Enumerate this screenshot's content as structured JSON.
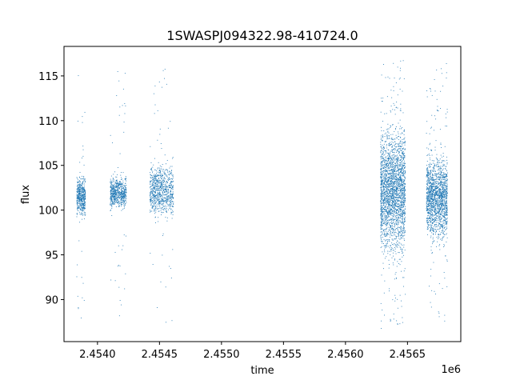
{
  "chart_data": {
    "type": "scatter",
    "title": "1SWASPJ094322.98-410724.0",
    "xlabel": "time",
    "ylabel": "flux",
    "x_offset_label": "1e6",
    "xlim": [
      2453730.0,
      2456930.0
    ],
    "ylim": [
      85.3,
      118.3
    ],
    "x_ticks": [
      2454000.0,
      2454500.0,
      2455000.0,
      2455500.0,
      2456000.0,
      2456500.0
    ],
    "x_tick_labels": [
      "2.4540",
      "2.4545",
      "2.4550",
      "2.4555",
      "2.4560",
      "2.4565"
    ],
    "y_ticks": [
      90,
      95,
      100,
      105,
      110,
      115
    ],
    "y_tick_labels": [
      "90",
      "95",
      "100",
      "105",
      "110",
      "115"
    ],
    "grid": false,
    "point_color": "#1f77b4",
    "series": [
      {
        "clusters": [
          {
            "x_range": [
              2453830.0,
              2453900.0
            ],
            "core_y_range": [
              98.5,
              104.5
            ],
            "outlier_y_range": [
              87.3,
              117.0
            ],
            "n": 500
          },
          {
            "x_range": [
              2454100.0,
              2454230.0
            ],
            "core_y_range": [
              99.5,
              104.5
            ],
            "outlier_y_range": [
              87.8,
              116.4
            ],
            "n": 650
          },
          {
            "x_range": [
              2454420.0,
              2454610.0
            ],
            "core_y_range": [
              98.0,
              106.5
            ],
            "outlier_y_range": [
              87.0,
              116.0
            ],
            "n": 850
          },
          {
            "x_range": [
              2456280.0,
              2456480.0
            ],
            "core_y_range": [
              92.5,
              112.0
            ],
            "outlier_y_range": [
              86.8,
              116.8
            ],
            "n": 2500
          },
          {
            "x_range": [
              2456650.0,
              2456820.0
            ],
            "core_y_range": [
              95.0,
              108.0
            ],
            "outlier_y_range": [
              87.0,
              116.5
            ],
            "n": 1700
          }
        ]
      }
    ]
  }
}
